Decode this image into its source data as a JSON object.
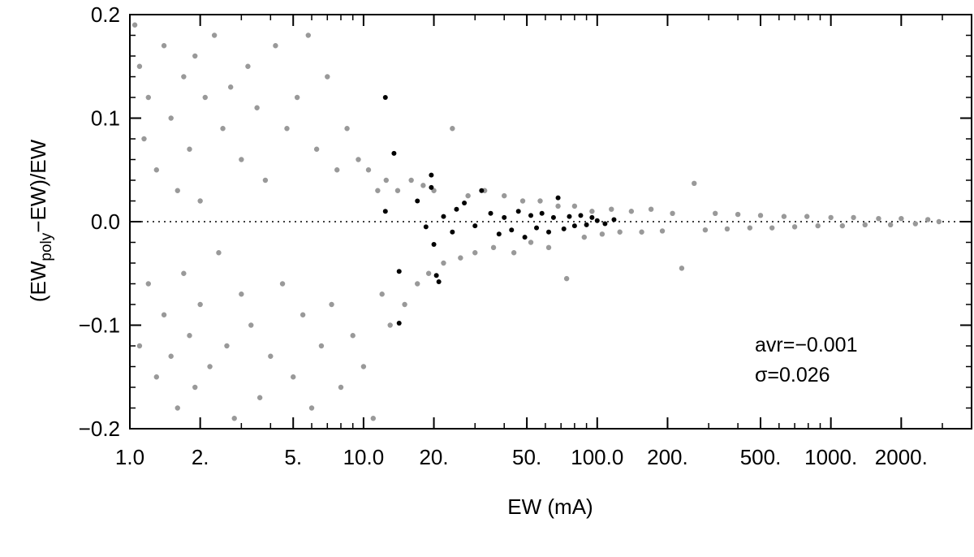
{
  "chart_data": {
    "type": "scatter",
    "title": "",
    "xlabel": "EW (mA)",
    "ylabel": {
      "prefix": "(EW",
      "subscript": "poly",
      "suffix": "−EW)/EW"
    },
    "x_scale": "log",
    "xlim": [
      1.0,
      4000
    ],
    "ylim": [
      -0.2,
      0.2
    ],
    "x_ticks": [
      {
        "value": 1.0,
        "label": "1.0"
      },
      {
        "value": 2.0,
        "label": "2."
      },
      {
        "value": 5.0,
        "label": "5."
      },
      {
        "value": 10.0,
        "label": "10.0"
      },
      {
        "value": 20.0,
        "label": "20."
      },
      {
        "value": 50.0,
        "label": "50."
      },
      {
        "value": 100.0,
        "label": "100.0"
      },
      {
        "value": 200.0,
        "label": "200."
      },
      {
        "value": 500.0,
        "label": "500."
      },
      {
        "value": 1000.0,
        "label": "1000."
      },
      {
        "value": 2000.0,
        "label": "2000."
      }
    ],
    "y_ticks": [
      {
        "value": 0.2,
        "label": "0.2"
      },
      {
        "value": 0.1,
        "label": "0.1"
      },
      {
        "value": 0.0,
        "label": "0.0"
      },
      {
        "value": -0.1,
        "label": "−0.1"
      },
      {
        "value": -0.2,
        "label": "−0.2"
      }
    ],
    "reference_line": {
      "y": 0.0,
      "style": "dotted"
    },
    "annotations": {
      "avr": "avr=−0.001",
      "sigma": "σ=0.026"
    },
    "grid": false,
    "series": [
      {
        "color": "#999999",
        "points": [
          [
            1.05,
            0.19
          ],
          [
            1.1,
            0.15
          ],
          [
            1.1,
            -0.12
          ],
          [
            1.15,
            0.08
          ],
          [
            1.2,
            -0.06
          ],
          [
            1.2,
            0.12
          ],
          [
            1.3,
            -0.15
          ],
          [
            1.3,
            0.05
          ],
          [
            1.4,
            -0.09
          ],
          [
            1.4,
            0.17
          ],
          [
            1.5,
            0.1
          ],
          [
            1.5,
            -0.13
          ],
          [
            1.6,
            0.03
          ],
          [
            1.6,
            -0.18
          ],
          [
            1.7,
            0.14
          ],
          [
            1.7,
            -0.05
          ],
          [
            1.8,
            0.07
          ],
          [
            1.8,
            -0.11
          ],
          [
            1.9,
            0.16
          ],
          [
            1.9,
            -0.16
          ],
          [
            2.0,
            0.02
          ],
          [
            2.0,
            -0.08
          ],
          [
            2.1,
            0.12
          ],
          [
            2.2,
            -0.14
          ],
          [
            2.3,
            0.18
          ],
          [
            2.4,
            -0.03
          ],
          [
            2.5,
            0.09
          ],
          [
            2.6,
            -0.12
          ],
          [
            2.7,
            0.13
          ],
          [
            2.8,
            -0.19
          ],
          [
            3.0,
            0.06
          ],
          [
            3.0,
            -0.07
          ],
          [
            3.2,
            0.15
          ],
          [
            3.3,
            -0.1
          ],
          [
            3.5,
            0.11
          ],
          [
            3.6,
            -0.17
          ],
          [
            3.8,
            0.04
          ],
          [
            4.0,
            -0.13
          ],
          [
            4.2,
            0.17
          ],
          [
            4.5,
            -0.06
          ],
          [
            4.7,
            0.09
          ],
          [
            5.0,
            -0.15
          ],
          [
            5.2,
            0.12
          ],
          [
            5.5,
            -0.09
          ],
          [
            5.8,
            0.18
          ],
          [
            6.0,
            -0.18
          ],
          [
            6.3,
            0.07
          ],
          [
            6.6,
            -0.12
          ],
          [
            7.0,
            0.14
          ],
          [
            7.3,
            -0.08
          ],
          [
            7.7,
            0.05
          ],
          [
            8.0,
            -0.16
          ],
          [
            8.5,
            0.09
          ],
          [
            9.0,
            -0.11
          ],
          [
            9.5,
            0.06
          ],
          [
            10.0,
            -0.14
          ],
          [
            10.5,
            0.05
          ],
          [
            11.0,
            -0.19
          ],
          [
            11.5,
            0.03
          ],
          [
            12.0,
            -0.07
          ],
          [
            12.5,
            0.04
          ],
          [
            13.0,
            -0.1
          ],
          [
            14.0,
            0.03
          ],
          [
            15.0,
            -0.08
          ],
          [
            16.0,
            0.04
          ],
          [
            17.0,
            -0.06
          ],
          [
            18.0,
            0.035
          ],
          [
            19.0,
            -0.05
          ],
          [
            20.0,
            0.03
          ],
          [
            22.0,
            -0.04
          ],
          [
            24.0,
            0.09
          ],
          [
            26.0,
            -0.035
          ],
          [
            28.0,
            0.025
          ],
          [
            30.0,
            -0.03
          ],
          [
            33.0,
            0.03
          ],
          [
            36.0,
            -0.025
          ],
          [
            40.0,
            0.025
          ],
          [
            44.0,
            -0.03
          ],
          [
            48.0,
            0.02
          ],
          [
            52.0,
            -0.02
          ],
          [
            57.0,
            0.02
          ],
          [
            62.0,
            -0.025
          ],
          [
            68.0,
            0.015
          ],
          [
            74.0,
            -0.055
          ],
          [
            80.0,
            0.015
          ],
          [
            88.0,
            -0.015
          ],
          [
            95.0,
            0.01
          ],
          [
            105.0,
            -0.012
          ],
          [
            115.0,
            0.012
          ],
          [
            125.0,
            -0.01
          ],
          [
            140.0,
            0.01
          ],
          [
            155.0,
            -0.01
          ],
          [
            170.0,
            0.012
          ],
          [
            190.0,
            -0.009
          ],
          [
            210.0,
            0.008
          ],
          [
            230.0,
            -0.045
          ],
          [
            260.0,
            0.037
          ],
          [
            290.0,
            -0.008
          ],
          [
            320.0,
            0.008
          ],
          [
            360.0,
            -0.007
          ],
          [
            400.0,
            0.007
          ],
          [
            450.0,
            -0.006
          ],
          [
            500.0,
            0.006
          ],
          [
            560.0,
            -0.006
          ],
          [
            630.0,
            0.005
          ],
          [
            700.0,
            -0.005
          ],
          [
            790.0,
            0.005
          ],
          [
            880.0,
            -0.004
          ],
          [
            1000.0,
            0.004
          ],
          [
            1120.0,
            -0.004
          ],
          [
            1250.0,
            0.004
          ],
          [
            1400.0,
            -0.003
          ],
          [
            1600.0,
            0.003
          ],
          [
            1800.0,
            -0.003
          ],
          [
            2000.0,
            0.003
          ],
          [
            2300.0,
            -0.002
          ],
          [
            2600.0,
            0.002
          ],
          [
            2900.0,
            0.0
          ]
        ]
      },
      {
        "color": "#000000",
        "points": [
          [
            12.4,
            0.12
          ],
          [
            13.5,
            0.066
          ],
          [
            12.4,
            0.01
          ],
          [
            14.2,
            -0.048
          ],
          [
            14.2,
            -0.098
          ],
          [
            17.0,
            0.02
          ],
          [
            18.5,
            -0.005
          ],
          [
            19.5,
            0.045
          ],
          [
            19.5,
            0.033
          ],
          [
            20.0,
            -0.022
          ],
          [
            20.5,
            -0.052
          ],
          [
            21.0,
            -0.058
          ],
          [
            22.0,
            0.005
          ],
          [
            24.0,
            -0.01
          ],
          [
            25.0,
            0.012
          ],
          [
            27.0,
            0.018
          ],
          [
            30.0,
            -0.004
          ],
          [
            32.0,
            0.03
          ],
          [
            35.0,
            0.008
          ],
          [
            38.0,
            -0.012
          ],
          [
            40.0,
            0.004
          ],
          [
            43.0,
            -0.008
          ],
          [
            46.0,
            0.01
          ],
          [
            49.0,
            -0.015
          ],
          [
            52.0,
            0.006
          ],
          [
            55.0,
            -0.006
          ],
          [
            58.0,
            0.008
          ],
          [
            62.0,
            -0.01
          ],
          [
            65.0,
            0.004
          ],
          [
            68.0,
            0.023
          ],
          [
            72.0,
            -0.007
          ],
          [
            76.0,
            0.005
          ],
          [
            80.0,
            -0.004
          ],
          [
            85.0,
            0.006
          ],
          [
            90.0,
            -0.003
          ],
          [
            95.0,
            0.004
          ],
          [
            100.0,
            0.001
          ],
          [
            108.0,
            -0.002
          ],
          [
            118.0,
            0.002
          ]
        ]
      }
    ]
  }
}
